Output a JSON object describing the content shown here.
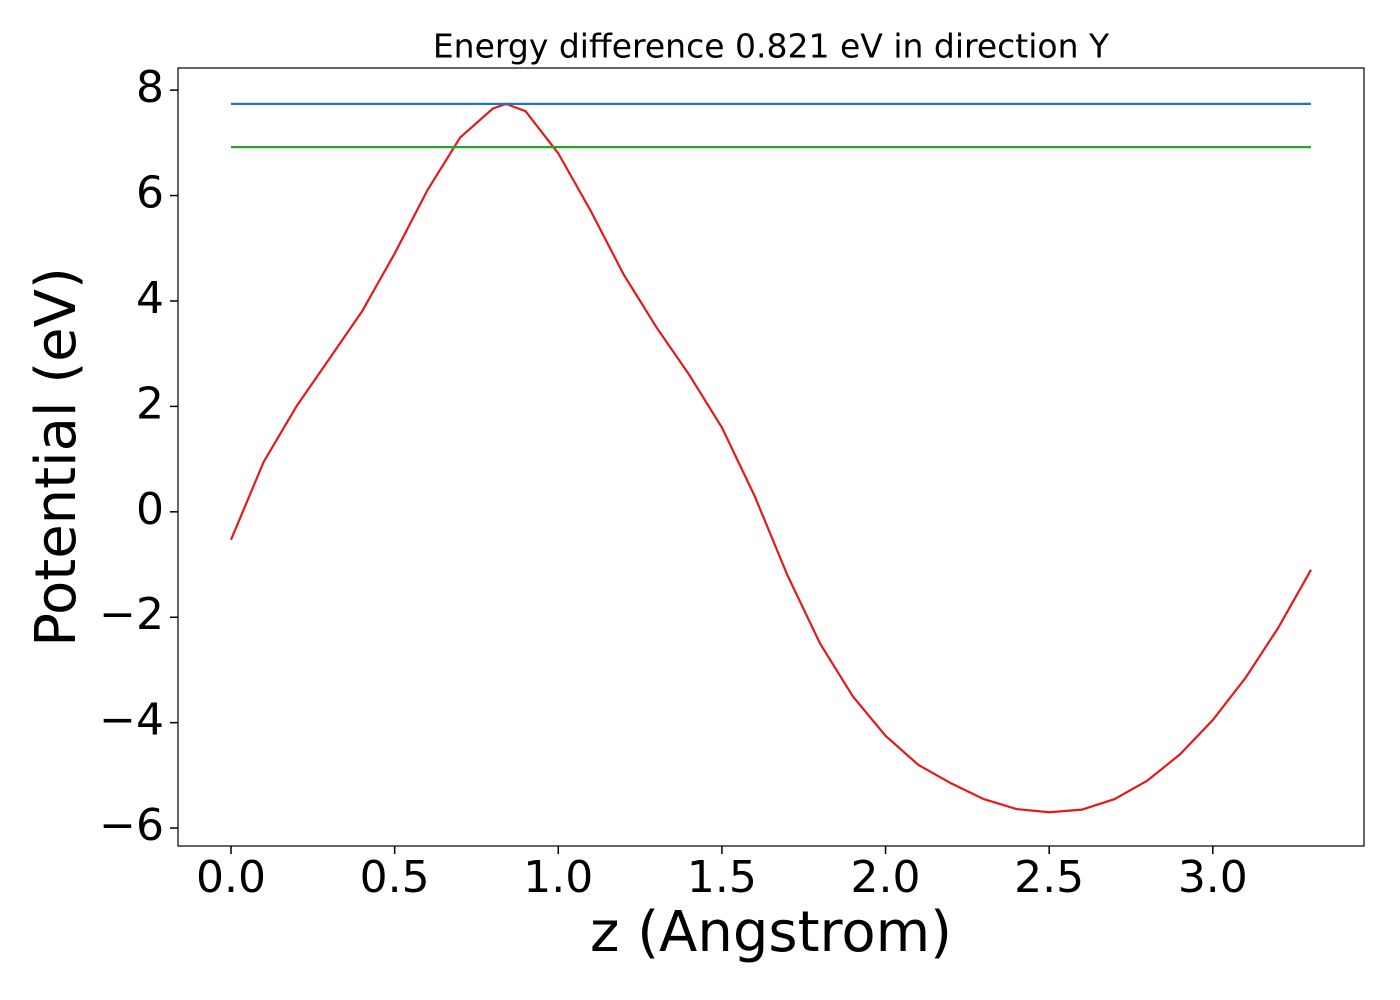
{
  "chart_data": {
    "type": "line",
    "title": "Energy difference 0.821 eV in direction Y",
    "xlabel": "z (Angstrom)",
    "ylabel": "Potential (eV)",
    "xlim": [
      -0.162,
      3.462
    ],
    "ylim": [
      -6.34,
      8.42
    ],
    "xticks": [
      {
        "value": 0,
        "label": "0.0"
      },
      0.5,
      {
        "value": 1,
        "label": "1.0"
      },
      1.5,
      {
        "value": 2,
        "label": "2.0"
      },
      2.5,
      {
        "value": 3,
        "label": "3.0"
      }
    ],
    "yticks": [
      {
        "value": -6,
        "label": "−6"
      },
      {
        "value": -4,
        "label": "−4"
      },
      {
        "value": -2,
        "label": "−2"
      },
      0,
      2,
      4,
      6,
      8
    ],
    "series": [
      {
        "color": "#e31a1c",
        "x": [
          0,
          0.1,
          0.2,
          0.3,
          0.4,
          0.5,
          0.6,
          0.7,
          0.8,
          0.84,
          0.9,
          1.0,
          1.1,
          1.2,
          1.3,
          1.4,
          1.5,
          1.6,
          1.7,
          1.8,
          1.9,
          2.0,
          2.1,
          2.2,
          2.3,
          2.4,
          2.5,
          2.6,
          2.7,
          2.8,
          2.9,
          3.0,
          3.1,
          3.2,
          3.3
        ],
        "values": [
          -0.53,
          0.95,
          2.0,
          2.9,
          3.8,
          4.9,
          6.1,
          7.1,
          7.65,
          7.74,
          7.6,
          6.8,
          5.7,
          4.5,
          3.5,
          2.6,
          1.6,
          0.3,
          -1.2,
          -2.5,
          -3.5,
          -4.25,
          -4.8,
          -5.15,
          -5.45,
          -5.64,
          -5.7,
          -5.65,
          -5.45,
          -5.1,
          -4.6,
          -3.95,
          -3.15,
          -2.2,
          -1.1
        ]
      },
      {
        "color": "#1f77b4",
        "x": [
          0,
          3.3
        ],
        "values": [
          7.74,
          7.74
        ]
      },
      {
        "color": "#2ca02c",
        "x": [
          0,
          3.3
        ],
        "values": [
          6.919,
          6.919
        ]
      }
    ]
  }
}
